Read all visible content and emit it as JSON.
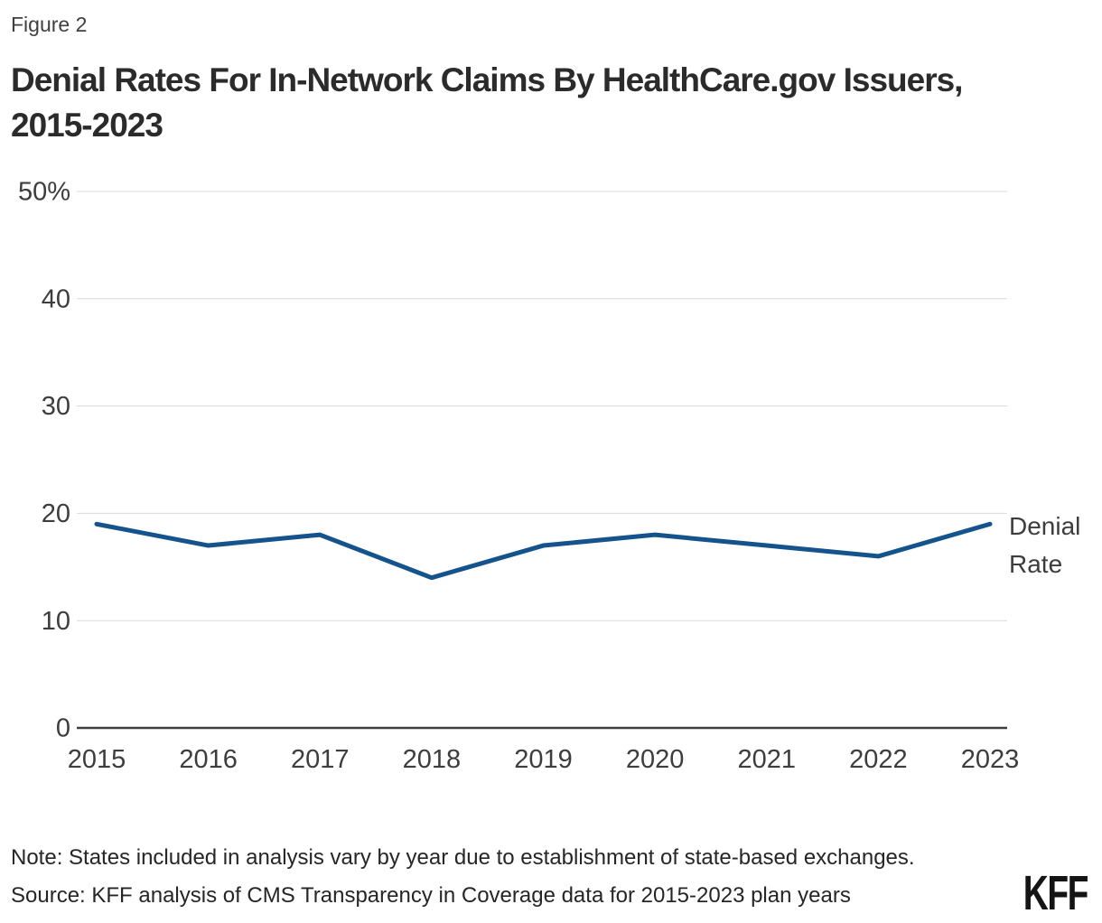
{
  "header": {
    "figure_label": "Figure 2",
    "title": "Denial Rates For In-Network Claims By HealthCare.gov Issuers, 2015-2023"
  },
  "chart_data": {
    "type": "line",
    "title": "Denial Rates For In-Network Claims By HealthCare.gov Issuers, 2015-2023",
    "categories": [
      "2015",
      "2016",
      "2017",
      "2018",
      "2019",
      "2020",
      "2021",
      "2022",
      "2023"
    ],
    "series": [
      {
        "name": "Denial Rate",
        "values": [
          19,
          17,
          18,
          14,
          17,
          18,
          17,
          16,
          19
        ]
      }
    ],
    "unit": "%",
    "ylim": [
      0,
      50
    ],
    "yticks": [
      0,
      10,
      20,
      30,
      40,
      50
    ],
    "ytick_labels": [
      "0",
      "10",
      "20",
      "30",
      "40",
      "50%"
    ],
    "xlabel": "",
    "ylabel": "",
    "grid": true,
    "legend_position": "right-end-of-line",
    "line_color": "#14538C"
  },
  "footer": {
    "note": "Note: States included in analysis vary by year due to establishment of state-based exchanges.",
    "source": "Source: KFF analysis of CMS Transparency in Coverage data for 2015-2023 plan years",
    "logo": "KFF"
  },
  "colors": {
    "line": "#14538C",
    "axis": "#3f3f3f",
    "grid": "#d9d9d9",
    "tick_text": "#3d3d3d",
    "title_text": "#2b2b2b"
  }
}
